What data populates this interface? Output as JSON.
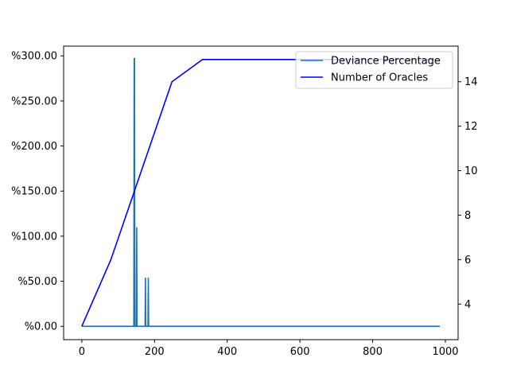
{
  "chart_data": {
    "type": "line",
    "title": "",
    "xlabel": "",
    "ylabel_left": "",
    "ylabel_right": "",
    "x_ticks": [
      0,
      200,
      400,
      600,
      800,
      1000
    ],
    "x_tick_labels": [
      "0",
      "200",
      "400",
      "600",
      "800",
      "1000"
    ],
    "xlim": [
      -50,
      1035
    ],
    "y_left_ticks": [
      0,
      50,
      100,
      150,
      200,
      250,
      300
    ],
    "y_left_tick_labels": [
      "%0.00",
      "%50.00",
      "%100.00",
      "%150.00",
      "%200.00",
      "%250.00",
      "%300.00"
    ],
    "y_left_lim": [
      -14.8,
      310.8
    ],
    "y_right_ticks": [
      4,
      6,
      8,
      10,
      12,
      14
    ],
    "y_right_tick_labels": [
      "4",
      "6",
      "8",
      "10",
      "12",
      "14"
    ],
    "y_right_lim": [
      2.4,
      15.6
    ],
    "grid": false,
    "legend_position": "top-right",
    "series": [
      {
        "name": "Deviance Percentage",
        "axis": "left",
        "color": "#1f77b4",
        "x": [
          0,
          143,
          144,
          145,
          146,
          150,
          151,
          152,
          174,
          175,
          176,
          182,
          183,
          184,
          985
        ],
        "y": [
          0,
          0,
          297,
          297,
          0,
          0,
          110,
          0,
          0,
          54,
          0,
          0,
          54,
          0,
          0
        ]
      },
      {
        "name": "Number of Oracles",
        "axis": "right",
        "color": "#0000ff",
        "x": [
          0,
          80,
          248,
          332,
          985
        ],
        "y": [
          3,
          6,
          14,
          15,
          15
        ]
      }
    ]
  }
}
